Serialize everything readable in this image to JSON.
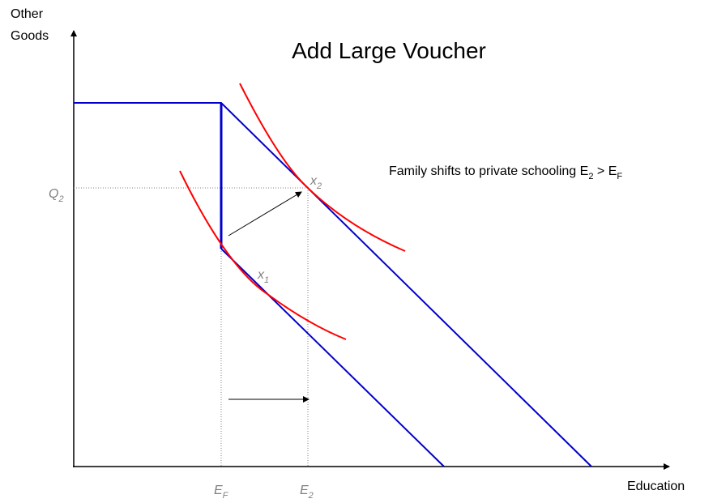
{
  "title": "Add Large Voucher",
  "y_axis_label": [
    "Other",
    "Goods"
  ],
  "x_axis_label": "Education",
  "annotation": [
    {
      "text": "Family shifts to private schooling E"
    },
    {
      "sub": "2"
    },
    {
      "text": " > E"
    },
    {
      "sub": "F"
    }
  ],
  "labels": {
    "q2": {
      "base": "Q",
      "sub": "2"
    },
    "x2": {
      "base": "x",
      "sub": "2"
    },
    "x1": {
      "base": "x",
      "sub": "1"
    },
    "ef": {
      "base": "E",
      "sub": "F"
    },
    "e2": {
      "base": "E",
      "sub": "2"
    }
  }
}
